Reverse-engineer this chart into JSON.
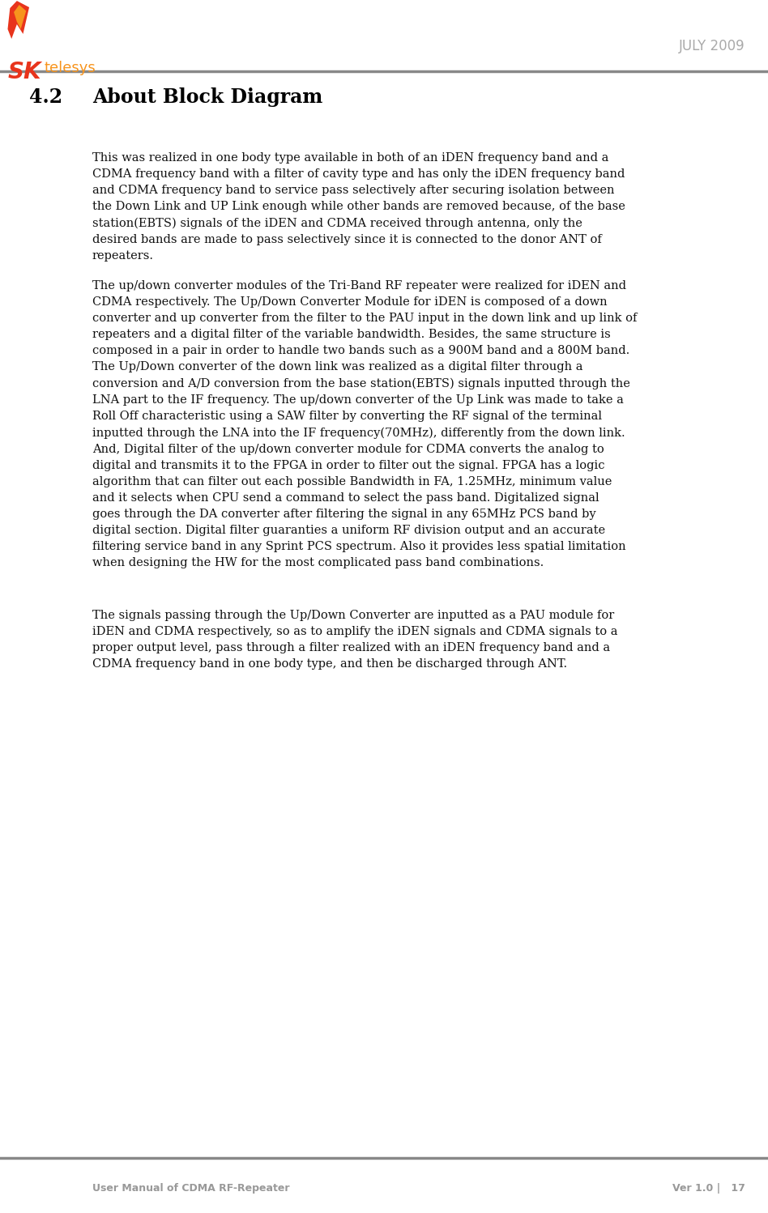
{
  "page_width": 9.48,
  "page_height": 14.98,
  "bg_color": "#ffffff",
  "header_line_color": "#888888",
  "footer_line_color": "#888888",
  "logo_sk_color": "#e8341c",
  "logo_telesys_color": "#f7941d",
  "header_date_text": "JULY 2009",
  "header_date_color": "#aaaaaa",
  "header_date_fontsize": 12,
  "footer_left_text": "User Manual of CDMA RF-Repeater",
  "footer_right_text": "Ver 1.0 |   17",
  "footer_color": "#999999",
  "footer_fontsize": 9,
  "section_number": "4.2",
  "section_title": "About Block Diagram",
  "section_fontsize": 17,
  "body_fontsize": 10.5,
  "body_color": "#111111",
  "paragraph1": "This was realized in one body type available in both of an iDEN frequency band and a\nCDMA frequency band with a filter of cavity type and has only the iDEN frequency band\nand CDMA frequency band to service pass selectively after securing isolation between\nthe Down Link and UP Link enough while other bands are removed because, of the base\nstation(EBTS) signals of the iDEN and CDMA received through antenna, only the\ndesired bands are made to pass selectively since it is connected to the donor ANT of\nrepeaters.",
  "paragraph2": "The up/down converter modules of the Tri-Band RF repeater were realized for iDEN and\nCDMA respectively. The Up/Down Converter Module for iDEN is composed of a down\nconverter and up converter from the filter to the PAU input in the down link and up link of\nrepeaters and a digital filter of the variable bandwidth. Besides, the same structure is\ncomposed in a pair in order to handle two bands such as a 900M band and a 800M band.\nThe Up/Down converter of the down link was realized as a digital filter through a\nconversion and A/D conversion from the base station(EBTS) signals inputted through the\nLNA part to the IF frequency. The up/down converter of the Up Link was made to take a\nRoll Off characteristic using a SAW filter by converting the RF signal of the terminal\ninputted through the LNA into the IF frequency(70MHz), differently from the down link.\nAnd, Digital filter of the up/down converter module for CDMA converts the analog to\ndigital and transmits it to the FPGA in order to filter out the signal. FPGA has a logic\nalgorithm that can filter out each possible Bandwidth in FA, 1.25MHz, minimum value\nand it selects when CPU send a command to select the pass band. Digitalized signal\ngoes through the DA converter after filtering the signal in any 65MHz PCS band by\ndigital section. Digital filter guaranties a uniform RF division output and an accurate\nfiltering service band in any Sprint PCS spectrum. Also it provides less spatial limitation\nwhen designing the HW for the most complicated pass band combinations.",
  "paragraph3": "The signals passing through the Up/Down Converter are inputted as a PAU module for\niDEN and CDMA respectively, so as to amplify the iDEN signals and CDMA signals to a\nproper output level, pass through a filter realized with an iDEN frequency band and a\nCDMA frequency band in one body type, and then be discharged through ANT."
}
